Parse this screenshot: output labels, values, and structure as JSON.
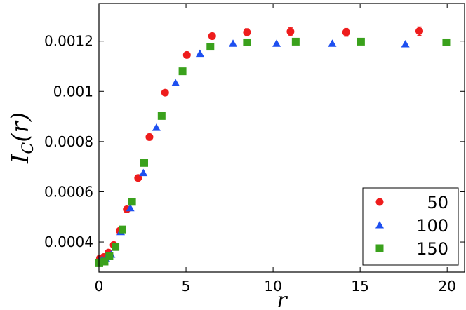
{
  "chart_data": {
    "type": "scatter",
    "title": "",
    "xlabel": "r",
    "ylabel_main": "I",
    "ylabel_sub": "C",
    "ylabel_arg": "(r)",
    "xlim": [
      0,
      21
    ],
    "ylim": [
      0.00028,
      0.00135
    ],
    "x_ticks": [
      0,
      5,
      10,
      15,
      20
    ],
    "x_tick_labels": [
      "0",
      "5",
      "10",
      "15",
      "20"
    ],
    "y_ticks": [
      0.0004,
      0.0006,
      0.0008,
      0.001,
      0.0012
    ],
    "y_tick_labels": [
      "0.0004",
      "0.0006",
      "0.0008",
      "0.001",
      "0.0012"
    ],
    "grid": false,
    "legend_position": "bottom-right",
    "series": [
      {
        "name": "50",
        "marker": "circle",
        "color": "#ee1c1c",
        "points": [
          [
            0.06,
            0.000335
          ],
          [
            0.28,
            0.00034
          ],
          [
            0.55,
            0.000358
          ],
          [
            0.85,
            0.000388
          ],
          [
            1.2,
            0.000445
          ],
          [
            1.6,
            0.00053
          ],
          [
            2.25,
            0.000655
          ],
          [
            2.9,
            0.000818
          ],
          [
            3.8,
            0.000995
          ],
          [
            5.05,
            0.001145
          ],
          [
            6.5,
            0.00122
          ],
          [
            8.5,
            0.001235
          ],
          [
            11.0,
            0.001238
          ],
          [
            14.2,
            0.001235
          ],
          [
            18.4,
            0.00124
          ]
        ],
        "errors": [
          4e-06,
          4e-06,
          4e-06,
          4e-06,
          5e-06,
          5e-06,
          6e-06,
          7e-06,
          9e-06,
          1.1e-05,
          1.3e-05,
          1.5e-05,
          1.6e-05,
          1.6e-05,
          1.7e-05
        ]
      },
      {
        "name": "100",
        "marker": "triangle",
        "color": "#1d4ff0",
        "points": [
          [
            0.04,
            0.000325
          ],
          [
            0.18,
            0.00033
          ],
          [
            0.4,
            0.000335
          ],
          [
            0.7,
            0.00035
          ],
          [
            0.95,
            0.00038
          ],
          [
            1.25,
            0.00044
          ],
          [
            1.8,
            0.000535
          ],
          [
            2.55,
            0.000675
          ],
          [
            3.3,
            0.000855
          ],
          [
            4.4,
            0.001033
          ],
          [
            5.8,
            0.00115
          ],
          [
            7.7,
            0.00119
          ],
          [
            10.2,
            0.00119
          ],
          [
            13.4,
            0.00119
          ],
          [
            17.6,
            0.001188
          ]
        ],
        "errors": []
      },
      {
        "name": "150",
        "marker": "square",
        "color": "#3aa11c",
        "points": [
          [
            0.02,
            0.000318
          ],
          [
            0.32,
            0.000322
          ],
          [
            0.6,
            0.000345
          ],
          [
            0.95,
            0.00038
          ],
          [
            1.35,
            0.00045
          ],
          [
            1.9,
            0.00056
          ],
          [
            2.6,
            0.000715
          ],
          [
            3.6,
            0.000902
          ],
          [
            4.8,
            0.00108
          ],
          [
            6.4,
            0.001178
          ],
          [
            8.5,
            0.001195
          ],
          [
            11.3,
            0.001198
          ],
          [
            15.05,
            0.001198
          ],
          [
            19.95,
            0.001195
          ]
        ],
        "errors": []
      }
    ]
  }
}
